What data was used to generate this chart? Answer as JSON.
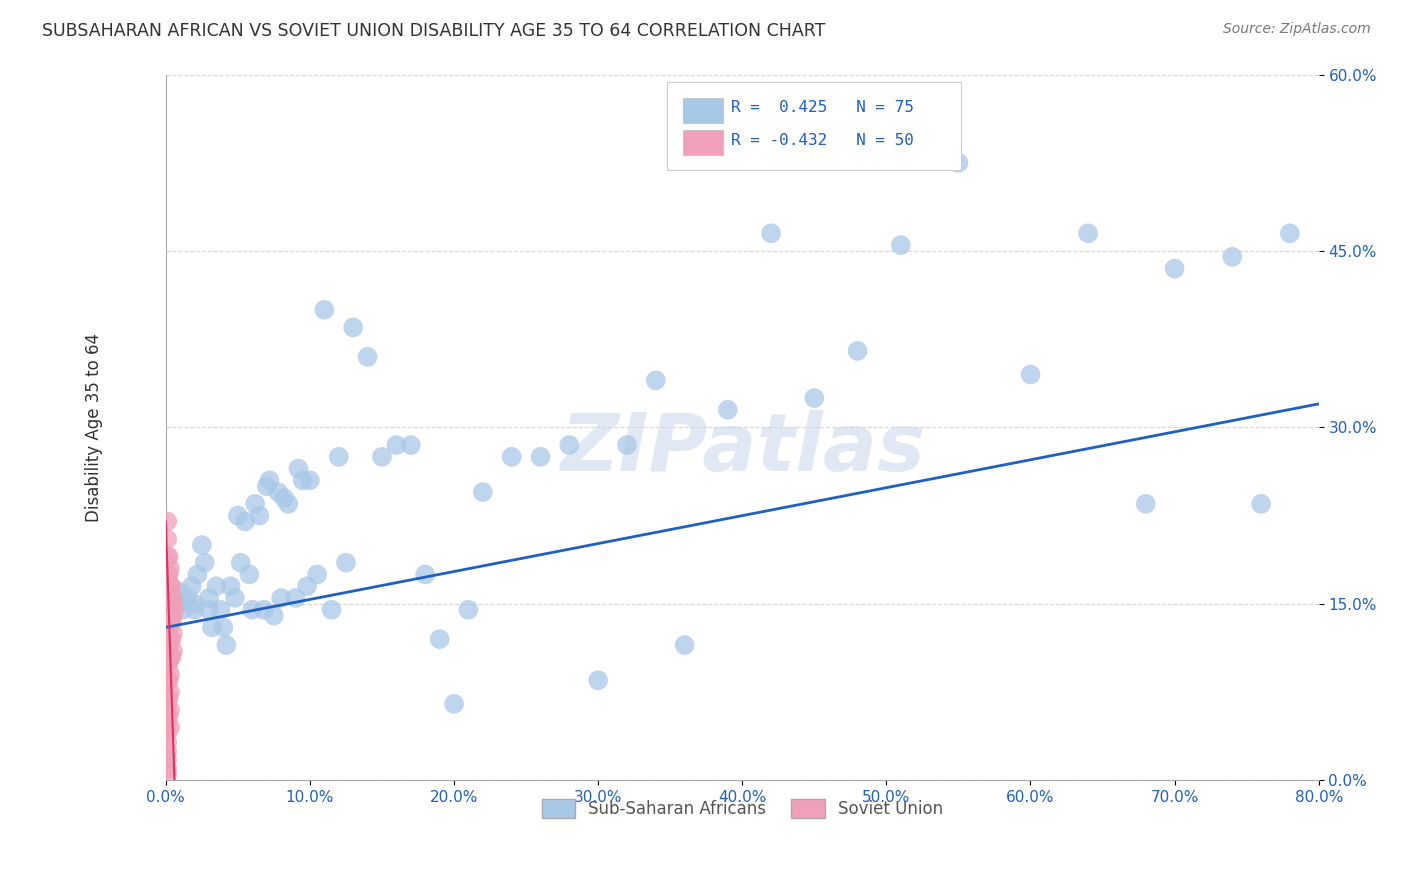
{
  "title": "SUBSAHARAN AFRICAN VS SOVIET UNION DISABILITY AGE 35 TO 64 CORRELATION CHART",
  "source": "Source: ZipAtlas.com",
  "ylabel": "Disability Age 35 to 64",
  "xlim": [
    0.0,
    0.8
  ],
  "ylim": [
    0.0,
    0.6
  ],
  "xticks": [
    0.0,
    0.1,
    0.2,
    0.3,
    0.4,
    0.5,
    0.6,
    0.7,
    0.8
  ],
  "yticks": [
    0.0,
    0.15,
    0.3,
    0.45,
    0.6
  ],
  "ytick_labels": [
    "0.0%",
    "15.0%",
    "30.0%",
    "45.0%",
    "60.0%"
  ],
  "xtick_labels": [
    "0.0%",
    "10.0%",
    "20.0%",
    "30.0%",
    "40.0%",
    "50.0%",
    "60.0%",
    "70.0%",
    "80.0%"
  ],
  "blue_color": "#a8c8e8",
  "pink_color": "#f0a0b8",
  "line_color": "#2060c0",
  "pink_line_color": "#e03060",
  "R_blue": 0.425,
  "N_blue": 75,
  "R_pink": -0.432,
  "N_pink": 50,
  "watermark": "ZIPatlas",
  "grid_color": "#cccccc",
  "background_color": "#ffffff",
  "blue_scatter_x": [
    0.005,
    0.008,
    0.01,
    0.012,
    0.015,
    0.018,
    0.02,
    0.02,
    0.022,
    0.025,
    0.027,
    0.03,
    0.03,
    0.032,
    0.035,
    0.038,
    0.04,
    0.042,
    0.045,
    0.048,
    0.05,
    0.052,
    0.055,
    0.058,
    0.06,
    0.062,
    0.065,
    0.068,
    0.07,
    0.072,
    0.075,
    0.078,
    0.08,
    0.082,
    0.085,
    0.09,
    0.092,
    0.095,
    0.098,
    0.1,
    0.105,
    0.11,
    0.115,
    0.12,
    0.125,
    0.13,
    0.14,
    0.15,
    0.16,
    0.17,
    0.18,
    0.19,
    0.2,
    0.21,
    0.22,
    0.24,
    0.26,
    0.28,
    0.3,
    0.32,
    0.34,
    0.36,
    0.39,
    0.42,
    0.45,
    0.48,
    0.51,
    0.55,
    0.6,
    0.64,
    0.68,
    0.7,
    0.74,
    0.76,
    0.78
  ],
  "blue_scatter_y": [
    0.155,
    0.15,
    0.16,
    0.145,
    0.155,
    0.165,
    0.15,
    0.145,
    0.175,
    0.2,
    0.185,
    0.145,
    0.155,
    0.13,
    0.165,
    0.145,
    0.13,
    0.115,
    0.165,
    0.155,
    0.225,
    0.185,
    0.22,
    0.175,
    0.145,
    0.235,
    0.225,
    0.145,
    0.25,
    0.255,
    0.14,
    0.245,
    0.155,
    0.24,
    0.235,
    0.155,
    0.265,
    0.255,
    0.165,
    0.255,
    0.175,
    0.4,
    0.145,
    0.275,
    0.185,
    0.385,
    0.36,
    0.275,
    0.285,
    0.285,
    0.175,
    0.12,
    0.065,
    0.145,
    0.245,
    0.275,
    0.275,
    0.285,
    0.085,
    0.285,
    0.34,
    0.115,
    0.315,
    0.465,
    0.325,
    0.365,
    0.455,
    0.525,
    0.345,
    0.465,
    0.235,
    0.435,
    0.445,
    0.235,
    0.465
  ],
  "pink_scatter_x": [
    0.001,
    0.001,
    0.001,
    0.001,
    0.001,
    0.001,
    0.001,
    0.001,
    0.001,
    0.001,
    0.001,
    0.001,
    0.001,
    0.001,
    0.001,
    0.001,
    0.001,
    0.001,
    0.001,
    0.001,
    0.002,
    0.002,
    0.002,
    0.002,
    0.002,
    0.002,
    0.002,
    0.002,
    0.002,
    0.002,
    0.003,
    0.003,
    0.003,
    0.003,
    0.003,
    0.003,
    0.003,
    0.003,
    0.003,
    0.003,
    0.004,
    0.004,
    0.004,
    0.004,
    0.004,
    0.005,
    0.005,
    0.005,
    0.005,
    0.006
  ],
  "pink_scatter_y": [
    0.22,
    0.205,
    0.19,
    0.175,
    0.16,
    0.145,
    0.13,
    0.115,
    0.1,
    0.085,
    0.07,
    0.055,
    0.04,
    0.025,
    0.01,
    0.005,
    0.018,
    0.032,
    0.048,
    0.063,
    0.19,
    0.175,
    0.16,
    0.145,
    0.13,
    0.115,
    0.1,
    0.085,
    0.07,
    0.055,
    0.18,
    0.165,
    0.15,
    0.135,
    0.12,
    0.105,
    0.09,
    0.075,
    0.06,
    0.045,
    0.165,
    0.15,
    0.135,
    0.12,
    0.105,
    0.155,
    0.14,
    0.125,
    0.11,
    0.145
  ],
  "blue_trend_x": [
    0.0,
    0.8
  ],
  "blue_trend_y": [
    0.13,
    0.32
  ],
  "pink_trend_x": [
    0.0,
    0.006
  ],
  "pink_trend_y": [
    0.22,
    0.0
  ]
}
